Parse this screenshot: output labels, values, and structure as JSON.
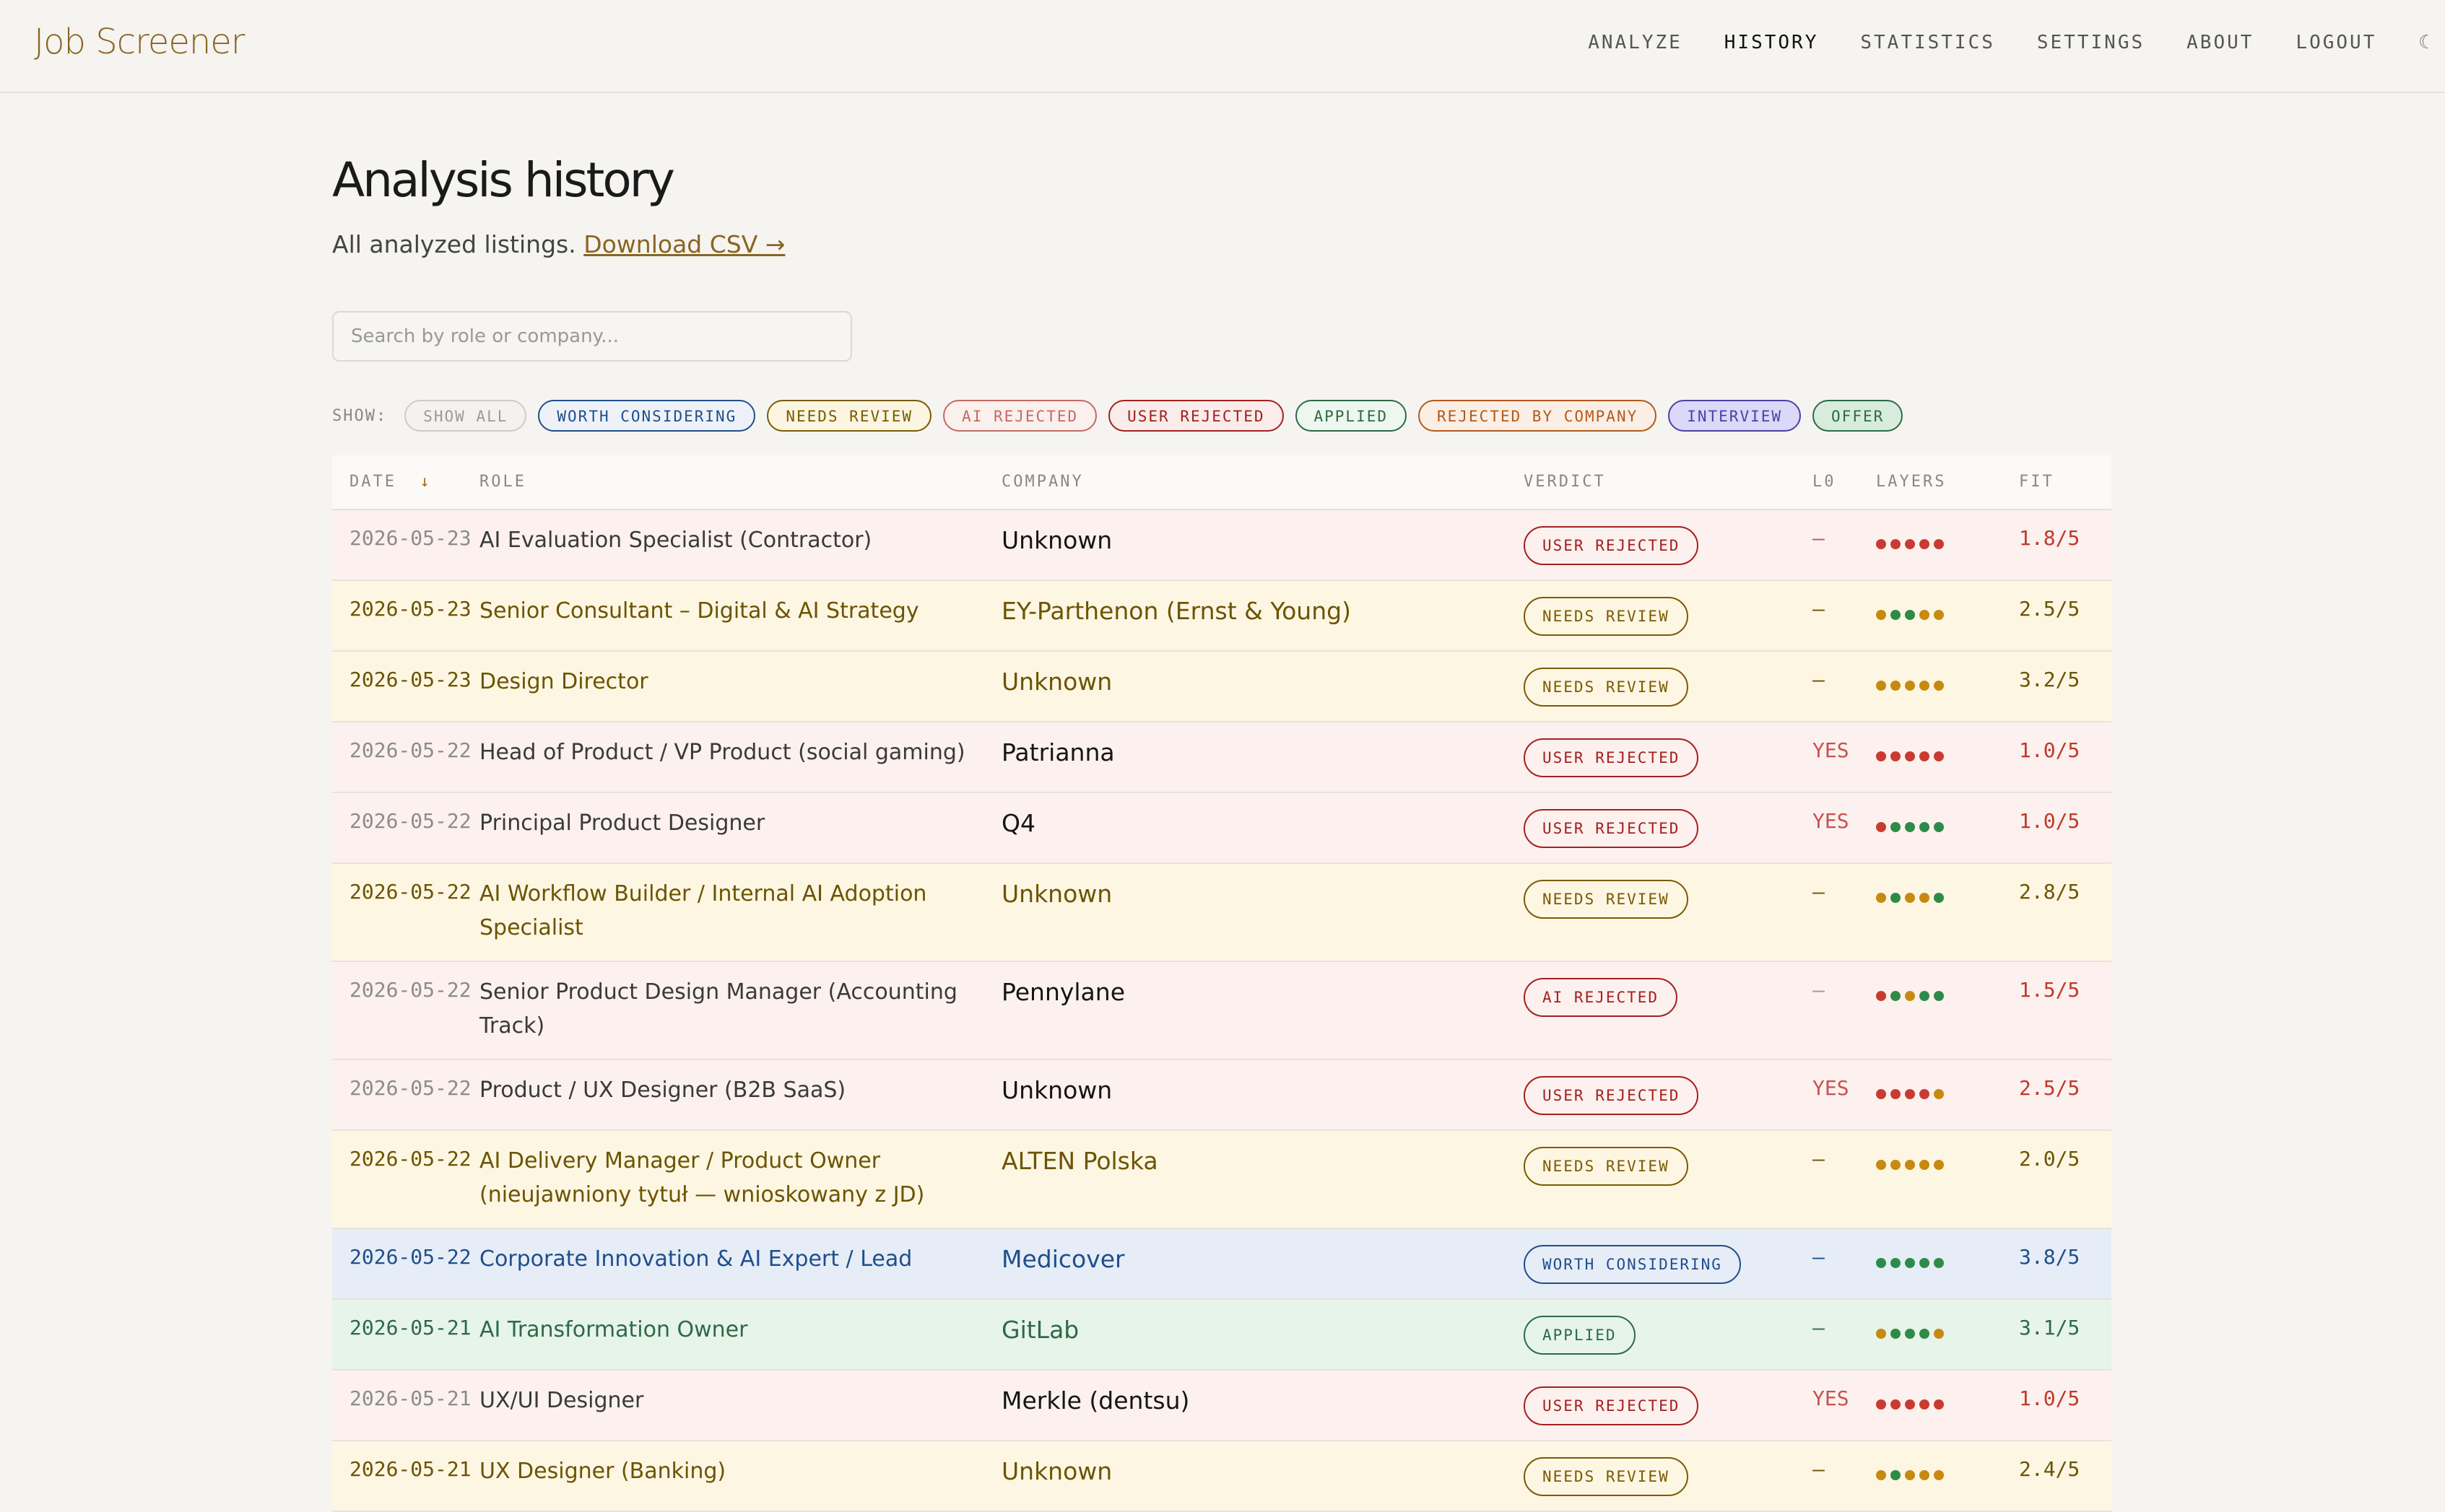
{
  "app": {
    "title": "Job Screener"
  },
  "nav": [
    {
      "label": "ANALYZE",
      "active": false
    },
    {
      "label": "HISTORY",
      "active": true
    },
    {
      "label": "STATISTICS",
      "active": false
    },
    {
      "label": "SETTINGS",
      "active": false
    },
    {
      "label": "ABOUT",
      "active": false
    },
    {
      "label": "LOGOUT",
      "active": false
    },
    {
      "label": "☾",
      "icon": "moon-icon"
    }
  ],
  "page": {
    "title": "Analysis history",
    "subtitle": "All analyzed listings.",
    "download_link": "Download CSV →",
    "search_placeholder": "Search by role or company..."
  },
  "filters": {
    "label": "SHOW:",
    "chips": [
      {
        "label": "SHOW ALL",
        "color": "#9a9a9a",
        "bg": "#f3f2ef"
      },
      {
        "label": "WORTH CONSIDERING",
        "color": "#1f4e8c",
        "bg": "#eef2f8"
      },
      {
        "label": "NEEDS REVIEW",
        "color": "#7a5b00",
        "bg": "#fbf5e2"
      },
      {
        "label": "AI REJECTED",
        "color": "#c46a64",
        "bg": "#faf0ee"
      },
      {
        "label": "USER REJECTED",
        "color": "#a32020",
        "bg": "#f9ecea"
      },
      {
        "label": "APPLIED",
        "color": "#2d6a45",
        "bg": "#eef6f0"
      },
      {
        "label": "REJECTED BY COMPANY",
        "color": "#b5581d",
        "bg": "#fbefe5"
      },
      {
        "label": "INTERVIEW",
        "color": "#4d3fa8",
        "bg": "#dcd8f7"
      },
      {
        "label": "OFFER",
        "color": "#2d6a45",
        "bg": "#d7ecdc"
      }
    ]
  },
  "table": {
    "headers": {
      "date": "DATE",
      "date_arrow": "↓",
      "role": "ROLE",
      "company": "COMPANY",
      "verdict": "VERDICT",
      "l0": "L0",
      "layers": "LAYERS",
      "fit": "FIT"
    },
    "rows": [
      {
        "date": "2026-05-23",
        "role": "AI Evaluation Specialist (Contractor)",
        "company": "Unknown",
        "verdict": "USER REJECTED",
        "l0": "—",
        "layers": [
          "r",
          "r",
          "r",
          "r",
          "r"
        ],
        "fit": "1.8/5",
        "status": "user_rejected"
      },
      {
        "date": "2026-05-23",
        "role": "Senior Consultant – Digital & AI Strategy",
        "company": "EY-Parthenon (Ernst & Young)",
        "verdict": "NEEDS REVIEW",
        "l0": "—",
        "layers": [
          "y",
          "g",
          "g",
          "y",
          "y"
        ],
        "fit": "2.5/5",
        "status": "needs_review"
      },
      {
        "date": "2026-05-23",
        "role": "Design Director",
        "company": "Unknown",
        "verdict": "NEEDS REVIEW",
        "l0": "—",
        "layers": [
          "y",
          "y",
          "y",
          "y",
          "y"
        ],
        "fit": "3.2/5",
        "status": "needs_review"
      },
      {
        "date": "2026-05-22",
        "role": "Head of Product / VP Product (social gaming)",
        "company": "Patrianna",
        "verdict": "USER REJECTED",
        "l0": "YES",
        "layers": [
          "r",
          "r",
          "r",
          "r",
          "r"
        ],
        "fit": "1.0/5",
        "status": "user_rejected"
      },
      {
        "date": "2026-05-22",
        "role": "Principal Product Designer",
        "company": "Q4",
        "verdict": "USER REJECTED",
        "l0": "YES",
        "layers": [
          "r",
          "g",
          "g",
          "g",
          "g"
        ],
        "fit": "1.0/5",
        "status": "user_rejected"
      },
      {
        "date": "2026-05-22",
        "role": "AI Workflow Builder / Internal AI Adoption Specialist",
        "company": "Unknown",
        "verdict": "NEEDS REVIEW",
        "l0": "—",
        "layers": [
          "y",
          "g",
          "y",
          "y",
          "g"
        ],
        "fit": "2.8/5",
        "status": "needs_review"
      },
      {
        "date": "2026-05-22",
        "role": "Senior Product Design Manager (Accounting Track)",
        "company": "Pennylane",
        "verdict": "AI REJECTED",
        "l0": "—",
        "layers": [
          "r",
          "g",
          "y",
          "g",
          "g"
        ],
        "fit": "1.5/5",
        "status": "ai_rejected"
      },
      {
        "date": "2026-05-22",
        "role": "Product / UX Designer (B2B SaaS)",
        "company": "Unknown",
        "verdict": "USER REJECTED",
        "l0": "YES",
        "layers": [
          "r",
          "r",
          "r",
          "r",
          "y"
        ],
        "fit": "2.5/5",
        "status": "user_rejected"
      },
      {
        "date": "2026-05-22",
        "role": "AI Delivery Manager / Product Owner (nieujawniony tytuł — wnioskowany z JD)",
        "company": "ALTEN Polska",
        "verdict": "NEEDS REVIEW",
        "l0": "—",
        "layers": [
          "y",
          "y",
          "y",
          "y",
          "y"
        ],
        "fit": "2.0/5",
        "status": "needs_review"
      },
      {
        "date": "2026-05-22",
        "role": "Corporate Innovation & AI Expert / Lead",
        "company": "Medicover",
        "verdict": "WORTH CONSIDERING",
        "l0": "—",
        "layers": [
          "g",
          "g",
          "g",
          "g",
          "g"
        ],
        "fit": "3.8/5",
        "status": "worth_considering"
      },
      {
        "date": "2026-05-21",
        "role": "AI Transformation Owner",
        "company": "GitLab",
        "verdict": "APPLIED",
        "l0": "—",
        "layers": [
          "y",
          "g",
          "g",
          "g",
          "y"
        ],
        "fit": "3.1/5",
        "status": "applied"
      },
      {
        "date": "2026-05-21",
        "role": "UX/UI Designer",
        "company": "Merkle (dentsu)",
        "verdict": "USER REJECTED",
        "l0": "YES",
        "layers": [
          "r",
          "r",
          "r",
          "r",
          "r"
        ],
        "fit": "1.0/5",
        "status": "user_rejected"
      },
      {
        "date": "2026-05-21",
        "role": "UX Designer (Banking)",
        "company": "Unknown",
        "verdict": "NEEDS REVIEW",
        "l0": "—",
        "layers": [
          "y",
          "g",
          "y",
          "y",
          "y"
        ],
        "fit": "2.4/5",
        "status": "needs_review"
      }
    ]
  },
  "colors": {
    "dot_red": "#c93b32",
    "dot_yellow": "#c8890f",
    "dot_green": "#2e8b47"
  }
}
